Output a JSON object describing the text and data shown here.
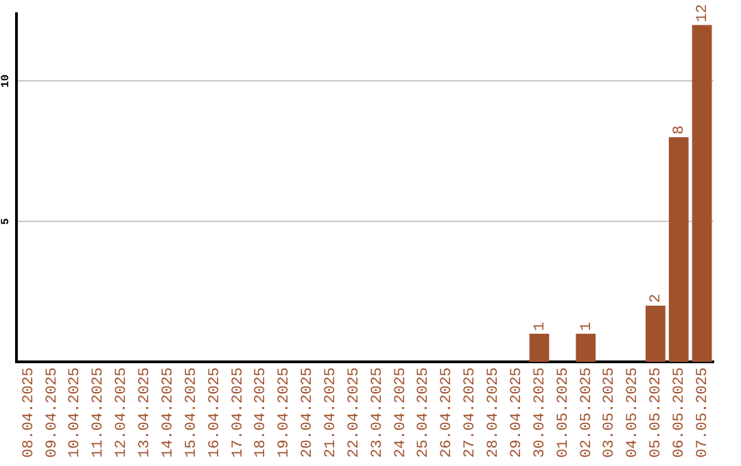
{
  "chart_data": {
    "type": "bar",
    "categories": [
      "08.04.2025",
      "09.04.2025",
      "10.04.2025",
      "11.04.2025",
      "12.04.2025",
      "13.04.2025",
      "14.04.2025",
      "15.04.2025",
      "16.04.2025",
      "17.04.2025",
      "18.04.2025",
      "19.04.2025",
      "20.04.2025",
      "21.04.2025",
      "22.04.2025",
      "23.04.2025",
      "24.04.2025",
      "25.04.2025",
      "26.04.2025",
      "27.04.2025",
      "28.04.2025",
      "29.04.2025",
      "30.04.2025",
      "01.05.2025",
      "02.05.2025",
      "03.05.2025",
      "04.05.2025",
      "05.05.2025",
      "06.05.2025",
      "07.05.2025"
    ],
    "values": [
      0,
      0,
      0,
      0,
      0,
      0,
      0,
      0,
      0,
      0,
      0,
      0,
      0,
      0,
      0,
      0,
      0,
      0,
      0,
      0,
      0,
      0,
      1,
      0,
      1,
      0,
      0,
      2,
      8,
      12
    ],
    "value_labels": [
      null,
      null,
      null,
      null,
      null,
      null,
      null,
      null,
      null,
      null,
      null,
      null,
      null,
      null,
      null,
      null,
      null,
      null,
      null,
      null,
      null,
      null,
      "1",
      null,
      "1",
      null,
      null,
      "2",
      "8",
      "12"
    ],
    "color": "#a0522d",
    "ylim": [
      0,
      12.4
    ],
    "yticks": [
      5,
      10
    ],
    "grid": "y",
    "legend": false
  }
}
